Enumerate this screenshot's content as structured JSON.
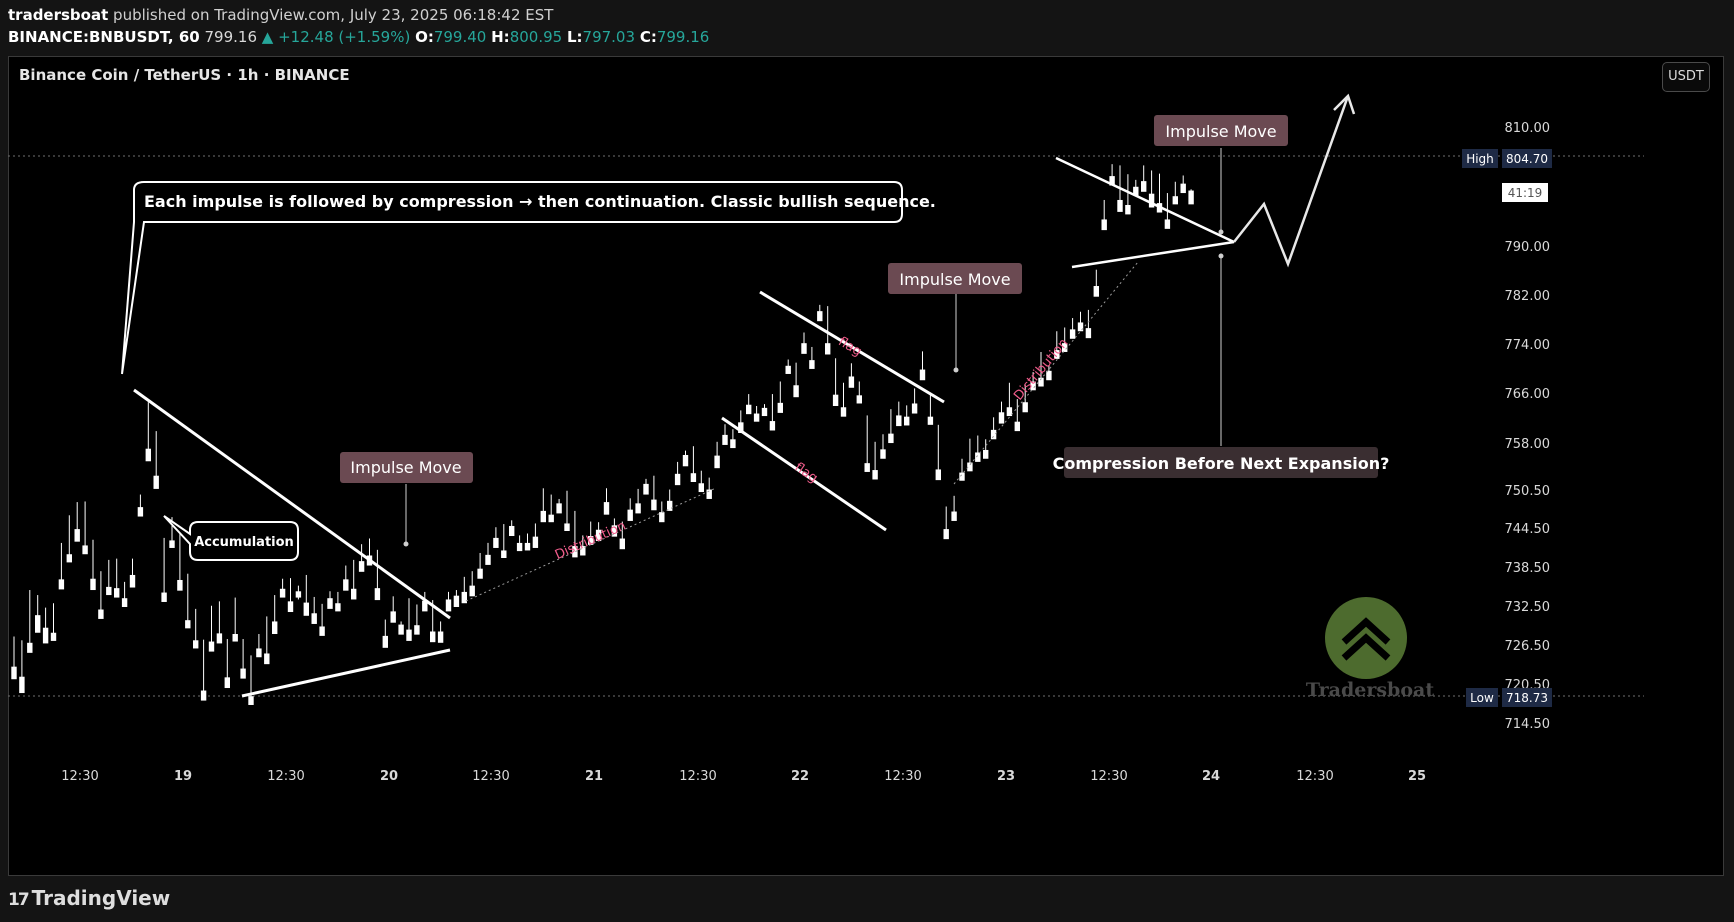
{
  "header": {
    "author": "tradersboat",
    "published_text": "published on TradingView.com, July 23, 2025 06:18:42 EST",
    "symbol": "BINANCE:BNBUSDT, 60",
    "last": "799.16",
    "change": "▲ +12.48 (+1.59%)",
    "o_label": "O:",
    "o_value": "799.40",
    "h_label": "H:",
    "h_value": "800.95",
    "l_label": "L:",
    "l_value": "797.03",
    "c_label": "C:",
    "c_value": "799.16"
  },
  "chart_title": "Binance Coin / TetherUS · 1h · BINANCE",
  "currency": "USDT",
  "footer": {
    "brand": "TradingView"
  },
  "watermark": "Tradersboat",
  "colors": {
    "up": "#f05c8b",
    "down": "#ffffff",
    "axis_text": "#d9d9d9",
    "background": "#000000",
    "badge": "#6b4a52"
  },
  "chart_data": {
    "type": "candlestick",
    "x_tick_labels": [
      "12:30",
      "19",
      "12:30",
      "20",
      "12:30",
      "21",
      "12:30",
      "22",
      "12:30",
      "23",
      "12:30",
      "24",
      "12:30",
      "25"
    ],
    "y_tick_labels": [
      "810.00",
      "790.00",
      "782.00",
      "774.00",
      "766.00",
      "758.00",
      "750.50",
      "744.50",
      "738.50",
      "732.50",
      "726.50",
      "720.50",
      "714.50"
    ],
    "high_marker": {
      "label": "High",
      "value": "804.70"
    },
    "low_marker": {
      "label": "Low",
      "value": "718.73"
    },
    "countdown": "41:19",
    "annotations": {
      "main_callout": "Each impulse is followed by compression → then continuation. Classic bullish sequence.",
      "accumulation": "Accumulation",
      "impulse_1": "Impulse Move",
      "impulse_2": "Impulse Move",
      "impulse_3": "Impulse Move",
      "compression": "Compression Before Next Expansion?",
      "distribution_1": "Distribution",
      "distribution_2": "Distribution",
      "flag_top": "flag",
      "flag_bottom": "flag"
    },
    "candles": [
      [
        723.4,
        728.2,
        722.6,
        721.4
      ],
      [
        721.8,
        727.6,
        720.5,
        719.2
      ],
      [
        727.2,
        735.6,
        726.0,
        725.6
      ],
      [
        731.6,
        734.8,
        729.7,
        728.8
      ],
      [
        729.6,
        732.8,
        728.4,
        727.1
      ],
      [
        728.8,
        733.5,
        728.1,
        727.5
      ],
      [
        737.3,
        743.1,
        736.7,
        735.7
      ],
      [
        741.3,
        747.5,
        740.5,
        740.0
      ],
      [
        745.3,
        749.6,
        744.0,
        743.3
      ],
      [
        742.7,
        749.7,
        741.8,
        741.3
      ],
      [
        737.4,
        743.6,
        736.4,
        735.6
      ],
      [
        732.5,
        738.6,
        731.7,
        731.0
      ],
      [
        736.1,
        740.4,
        735.4,
        734.8
      ],
      [
        735.9,
        740.6,
        735.1,
        734.4
      ],
      [
        734.3,
        736.9,
        733.4,
        732.9
      ],
      [
        738.0,
        740.6,
        737.2,
        736.0
      ],
      [
        748.8,
        750.8,
        748.0,
        747.3
      ],
      [
        758.1,
        765.5,
        757.0,
        756.1
      ],
      [
        753.8,
        760.9,
        753.1,
        751.7
      ],
      [
        735.2,
        743.9,
        734.4,
        733.7
      ],
      [
        743.5,
        747.2,
        742.6,
        742.3
      ],
      [
        737.2,
        744.8,
        736.6,
        735.5
      ],
      [
        730.8,
        738.2,
        729.9,
        729.5
      ],
      [
        727.6,
        732.6,
        726.9,
        726.3
      ],
      [
        719.6,
        727.7,
        718.7,
        718.0
      ],
      [
        727.4,
        733.1,
        726.6,
        725.8
      ],
      [
        728.7,
        733.8,
        728.1,
        727.1
      ],
      [
        721.7,
        727.8,
        720.8,
        720.0
      ],
      [
        728.6,
        734.4,
        727.9,
        727.4
      ],
      [
        723.1,
        727.8,
        722.5,
        721.5
      ],
      [
        718.7,
        725.2,
        718.0,
        717.3
      ],
      [
        726.3,
        728.6,
        725.3,
        724.9
      ],
      [
        725.5,
        731.4,
        724.8,
        723.8
      ],
      [
        730.6,
        734.8,
        729.5,
        728.6
      ],
      [
        735.8,
        737.4,
        735.3,
        734.4
      ],
      [
        733.8,
        737.5,
        732.8,
        732.1
      ],
      [
        735.4,
        736.3,
        734.1,
        734.4
      ],
      [
        733.6,
        738.0,
        732.7,
        731.5
      ],
      [
        731.9,
        734.5,
        730.8,
        730.2
      ],
      [
        729.8,
        733.4,
        728.8,
        728.3
      ],
      [
        734.3,
        735.4,
        733.5,
        732.6
      ],
      [
        733.5,
        735.3,
        732.7,
        732.2
      ],
      [
        737.3,
        739.5,
        736.6,
        735.5
      ],
      [
        735.8,
        740.4,
        735.3,
        734.1
      ],
      [
        740.2,
        742.9,
        739.6,
        738.5
      ],
      [
        741.1,
        743.8,
        740.5,
        739.5
      ],
      [
        735.9,
        742.0,
        734.7,
        734.0
      ],
      [
        728.3,
        730.9,
        727.7,
        726.4
      ],
      [
        732.2,
        734.6,
        731.3,
        730.4
      ],
      [
        730.1,
        730.6,
        729.2,
        728.5
      ],
      [
        729.3,
        734.3,
        728.5,
        727.5
      ],
      [
        730.0,
        733.3,
        729.0,
        728.5
      ],
      [
        733.9,
        735.3,
        733.4,
        732.2
      ],
      [
        729.0,
        734.0,
        728.0,
        727.3
      ],
      [
        729.0,
        730.6,
        728.5,
        727.2
      ],
      [
        734.1,
        735.3,
        733.4,
        732.2
      ],
      [
        734.7,
        735.6,
        734.1,
        732.9
      ],
      [
        735.3,
        737.7,
        734.3,
        733.5
      ],
      [
        736.3,
        738.6,
        735.7,
        734.6
      ],
      [
        739.0,
        741.5,
        738.1,
        737.4
      ],
      [
        741.2,
        743.1,
        740.6,
        739.6
      ],
      [
        743.9,
        745.6,
        743.1,
        742.3
      ],
      [
        741.9,
        746.1,
        741.4,
        740.7
      ],
      [
        745.8,
        746.7,
        744.8,
        744.2
      ],
      [
        743.1,
        744.3,
        742.6,
        741.8
      ],
      [
        743.1,
        744.6,
        742.1,
        741.9
      ],
      [
        744.1,
        746.2,
        743.6,
        742.3
      ],
      [
        748.2,
        751.8,
        747.4,
        746.4
      ],
      [
        747.6,
        750.8,
        746.9,
        746.4
      ],
      [
        749.4,
        750.1,
        748.3,
        747.8
      ],
      [
        746.2,
        751.4,
        745.3,
        745.0
      ],
      [
        742.6,
        748.2,
        741.7,
        740.8
      ],
      [
        742.6,
        744.3,
        741.7,
        741.1
      ],
      [
        744.2,
        746.5,
        743.6,
        742.8
      ],
      [
        745.2,
        746.4,
        744.8,
        743.4
      ],
      [
        749.6,
        751.8,
        748.7,
        747.6
      ],
      [
        745.9,
        747.0,
        745.1,
        744.1
      ],
      [
        743.8,
        746.5,
        743.3,
        742.1
      ],
      [
        748.4,
        750.2,
        747.5,
        746.6
      ],
      [
        749.4,
        751.7,
        748.3,
        747.8
      ],
      [
        752.5,
        753.3,
        751.9,
        750.8
      ],
      [
        750.0,
        753.8,
        749.6,
        748.3
      ],
      [
        748.0,
        749.7,
        747.5,
        746.4
      ],
      [
        749.8,
        751.6,
        749.3,
        748.2
      ],
      [
        754.1,
        756.0,
        753.4,
        752.3
      ],
      [
        757.1,
        757.8,
        756.1,
        755.3
      ],
      [
        754.2,
        758.5,
        753.6,
        752.8
      ],
      [
        752.6,
        754.6,
        751.7,
        751.2
      ],
      [
        751.6,
        753.5,
        750.7,
        750.1
      ],
      [
        757.0,
        759.2,
        756.2,
        755.0
      ],
      [
        760.3,
        762.0,
        759.7,
        758.7
      ],
      [
        759.6,
        761.2,
        759.1,
        758.2
      ],
      [
        762.3,
        764.2,
        761.5,
        760.6
      ],
      [
        765.1,
        766.8,
        764.4,
        763.6
      ],
      [
        763.7,
        764.9,
        762.8,
        762.4
      ],
      [
        764.6,
        765.2,
        763.9,
        763.3
      ],
      [
        762.5,
        766.8,
        761.6,
        761.0
      ],
      [
        765.4,
        768.8,
        764.6,
        763.8
      ],
      [
        771.3,
        772.3,
        770.3,
        770.0
      ],
      [
        768.2,
        771.8,
        767.6,
        766.3
      ],
      [
        774.9,
        776.6,
        774.3,
        773.2
      ],
      [
        772.2,
        774.3,
        771.4,
        770.8
      ],
      [
        780.0,
        781.0,
        778.9,
        778.4
      ],
      [
        774.9,
        780.8,
        774.4,
        773.1
      ],
      [
        766.7,
        772.5,
        765.4,
        764.9
      ],
      [
        764.7,
        768.6,
        763.7,
        763.2
      ],
      [
        769.6,
        771.7,
        768.5,
        767.8
      ],
      [
        766.6,
        768.8,
        765.6,
        765.3
      ],
      [
        755.8,
        763.4,
        754.9,
        754.4
      ],
      [
        754.7,
        759.2,
        753.8,
        753.2
      ],
      [
        758.0,
        760.4,
        756.9,
        756.5
      ],
      [
        760.5,
        764.4,
        759.9,
        759.0
      ],
      [
        763.4,
        765.6,
        763.0,
        761.7
      ],
      [
        763.2,
        765.0,
        762.7,
        761.8
      ],
      [
        765.3,
        767.7,
        764.8,
        763.7
      ],
      [
        770.7,
        773.6,
        769.9,
        769.0
      ],
      [
        763.2,
        766.9,
        762.3,
        761.9
      ],
      [
        754.8,
        761.9,
        754.0,
        753.1
      ],
      [
        745.3,
        748.9,
        744.5,
        743.7
      ],
      [
        748.1,
        750.6,
        747.1,
        746.6
      ],
      [
        754.3,
        756.5,
        753.7,
        753.0
      ],
      [
        755.9,
        759.7,
        755.0,
        754.5
      ],
      [
        757.5,
        760.2,
        756.8,
        756.0
      ],
      [
        757.9,
        759.6,
        757.4,
        756.5
      ],
      [
        761.1,
        763.1,
        760.2,
        759.6
      ],
      [
        763.9,
        765.6,
        763.3,
        762.1
      ],
      [
        764.7,
        768.6,
        763.7,
        763.3
      ],
      [
        762.4,
        766.0,
        761.3,
        760.9
      ],
      [
        765.5,
        768.3,
        764.9,
        763.9
      ],
      [
        768.8,
        770.3,
        768.2,
        767.4
      ],
      [
        769.4,
        773.5,
        768.2,
        768.0
      ],
      [
        770.5,
        771.4,
        770.0,
        769.0
      ],
      [
        773.8,
        776.8,
        773.2,
        772.4
      ],
      [
        774.9,
        777.4,
        773.7,
        773.5
      ],
      [
        777.1,
        778.9,
        776.4,
        775.6
      ],
      [
        778.2,
        779.9,
        777.7,
        776.8
      ],
      [
        777.3,
        780.2,
        776.4,
        775.7
      ],
      [
        784.0,
        786.6,
        783.3,
        782.3
      ],
      [
        794.6,
        797.7,
        794.0,
        792.9
      ],
      [
        801.5,
        803.4,
        800.2,
        800.0
      ],
      [
        797.7,
        803.2,
        797.0,
        795.8
      ],
      [
        796.9,
        801.8,
        796.1,
        795.4
      ],
      [
        799.8,
        800.9,
        798.8,
        798.4
      ],
      [
        800.7,
        803.2,
        799.6,
        799.0
      ],
      [
        798.7,
        802.4,
        797.4,
        796.5
      ],
      [
        797.2,
        801.9,
        796.2,
        795.7
      ],
      [
        794.6,
        798.8,
        793.9,
        793.1
      ],
      [
        798.3,
        800.6,
        797.7,
        797.0
      ],
      [
        800.3,
        801.6,
        799.8,
        798.8
      ],
      [
        799.2,
        799.4,
        798.3,
        797.0
      ]
    ]
  }
}
